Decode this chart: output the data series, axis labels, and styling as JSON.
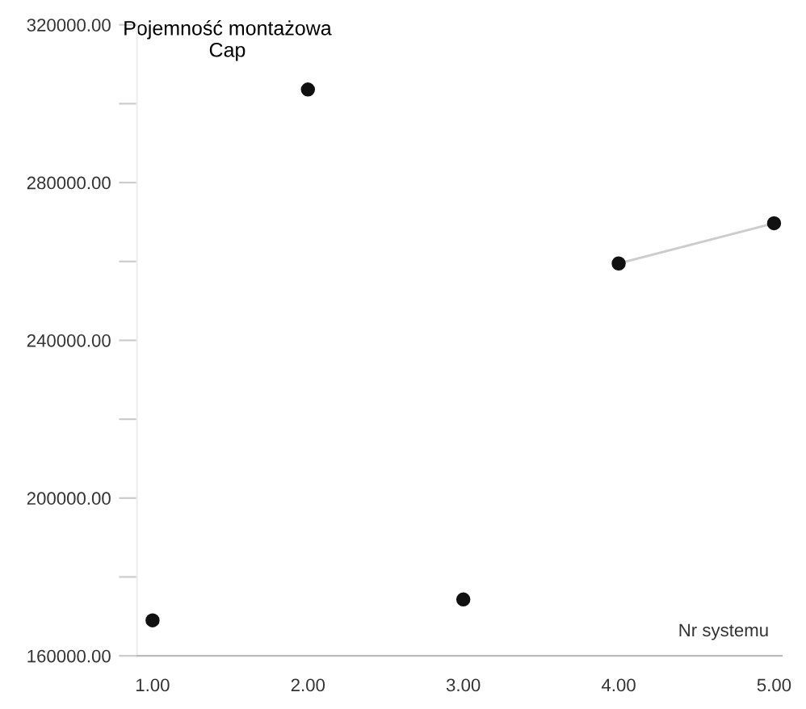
{
  "chart_data": {
    "type": "scatter",
    "ylabel": "Pojemność montażowa\nCap",
    "xlabel": "Nr systemu",
    "series": [
      {
        "color": "#111111",
        "x": [
          1,
          2,
          3,
          4,
          5
        ],
        "values": [
          169000,
          303600,
          174300,
          259500,
          269700
        ]
      },
      {
        "type": "line",
        "color": "#cccccc",
        "x": [
          4,
          5
        ],
        "values": [
          259500,
          269700
        ],
        "marker": "none"
      }
    ],
    "xlim": [
      0.9,
      5.05
    ],
    "ylim": [
      160000,
      320000
    ],
    "xticks": [
      {
        "value": 1,
        "label": "1.00"
      },
      {
        "value": 2,
        "label": "2.00"
      },
      {
        "value": 3,
        "label": "3.00"
      },
      {
        "value": 4,
        "label": "4.00"
      },
      {
        "value": 5,
        "label": "5.00"
      }
    ],
    "yticks": [
      {
        "value": 160000,
        "label": "160000.00"
      },
      {
        "value": 180000,
        "label": null
      },
      {
        "value": 200000,
        "label": "200000.00"
      },
      {
        "value": 220000,
        "label": null
      },
      {
        "value": 240000,
        "label": "240000.00"
      },
      {
        "value": 260000,
        "label": null
      },
      {
        "value": 280000,
        "label": "280000.00"
      },
      {
        "value": 300000,
        "label": null
      },
      {
        "value": 320000,
        "label": "320000.00"
      }
    ],
    "grid": false,
    "marker": "circle"
  }
}
